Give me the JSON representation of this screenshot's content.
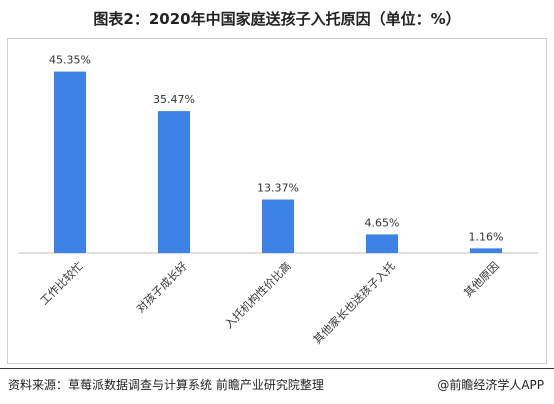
{
  "header": {
    "title": "图表2：2020年中国家庭送孩子入托原因（单位：%）"
  },
  "chart_data": {
    "type": "bar",
    "title": "图表2：2020年中国家庭送孩子入托原因（单位：%）",
    "categories": [
      "工作比较忙",
      "对孩子成长好",
      "入托机构性价比高",
      "其他家长也送孩子入托",
      "其他原因"
    ],
    "values": [
      45.35,
      35.47,
      13.37,
      4.65,
      1.16
    ],
    "value_labels": [
      "45.35%",
      "35.47%",
      "13.37%",
      "4.65%",
      "1.16%"
    ],
    "unit": "%",
    "ylim": [
      0,
      50
    ],
    "grid": false,
    "bar_color": "#3c82e6",
    "xlabel": "",
    "ylabel": ""
  },
  "footer": {
    "source": "资料来源：草莓派数据调查与计算系统 前瞻产业研究院整理",
    "credit": "@前瞻经济学人APP"
  }
}
